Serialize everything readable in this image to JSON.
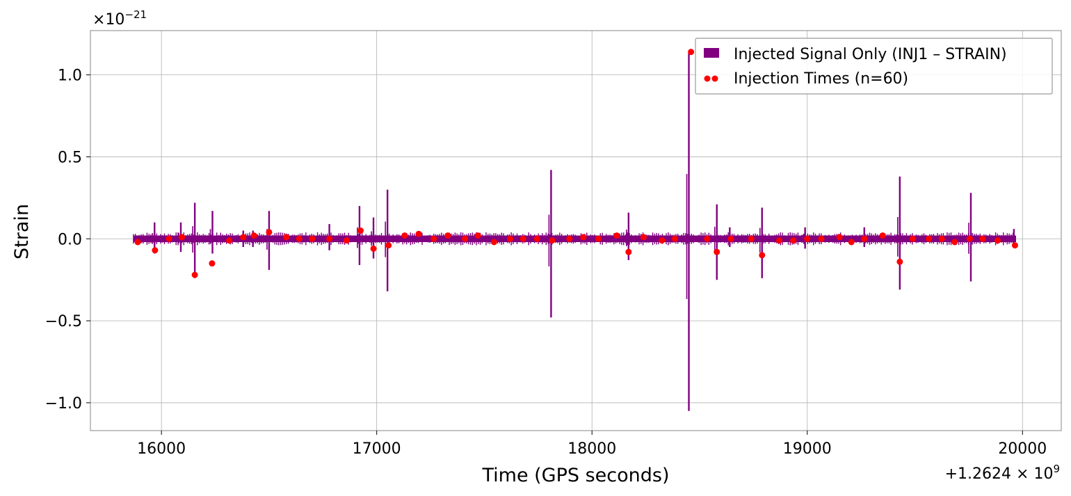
{
  "chart_data": {
    "type": "line",
    "xlabel": "Time (GPS seconds)",
    "ylabel": "Strain",
    "x_offset_label": "+1.2624 × 10",
    "x_offset_exp": "9",
    "y_scale_label": "×10",
    "y_scale_exp": "−21",
    "xlim": [
      15670,
      20180
    ],
    "ylim": [
      -1.17,
      1.27
    ],
    "xticks": [
      16000,
      17000,
      18000,
      19000,
      20000
    ],
    "xtick_labels": [
      "16000",
      "17000",
      "18000",
      "19000",
      "20000"
    ],
    "yticks": [
      1.0,
      0.5,
      0.0,
      -0.5,
      -1.0
    ],
    "ytick_labels": [
      "1.0",
      "0.5",
      "0.0",
      "−0.5",
      "−1.0"
    ],
    "grid": true,
    "legend_position": "top-right",
    "colors": {
      "signal": "#800080",
      "markers": "#ff0000"
    },
    "series": [
      {
        "name": "Injected Signal Only (INJ1 – STRAIN)",
        "kind": "line",
        "x_range": [
          15870,
          19970
        ],
        "baseline_noise": 0.02,
        "spikes": [
          {
            "x": 15968,
            "max": 0.1,
            "min": -0.09
          },
          {
            "x": 16090,
            "max": 0.1,
            "min": -0.08
          },
          {
            "x": 16155,
            "max": 0.22,
            "min": -0.24
          },
          {
            "x": 16237,
            "max": 0.17,
            "min": -0.09
          },
          {
            "x": 16380,
            "max": 0.05,
            "min": -0.05
          },
          {
            "x": 16425,
            "max": 0.05,
            "min": -0.05
          },
          {
            "x": 16500,
            "max": 0.17,
            "min": -0.19
          },
          {
            "x": 16780,
            "max": 0.09,
            "min": -0.07
          },
          {
            "x": 16920,
            "max": 0.2,
            "min": -0.16
          },
          {
            "x": 16985,
            "max": 0.13,
            "min": -0.12
          },
          {
            "x": 17050,
            "max": 0.3,
            "min": -0.32
          },
          {
            "x": 17810,
            "max": 0.42,
            "min": -0.48
          },
          {
            "x": 18170,
            "max": 0.16,
            "min": -0.13
          },
          {
            "x": 18450,
            "max": 1.13,
            "min": -1.05
          },
          {
            "x": 18580,
            "max": 0.21,
            "min": -0.25
          },
          {
            "x": 18640,
            "max": 0.07,
            "min": -0.05
          },
          {
            "x": 18790,
            "max": 0.19,
            "min": -0.24
          },
          {
            "x": 18990,
            "max": 0.07,
            "min": -0.06
          },
          {
            "x": 19265,
            "max": 0.07,
            "min": -0.05
          },
          {
            "x": 19430,
            "max": 0.38,
            "min": -0.31
          },
          {
            "x": 19760,
            "max": 0.28,
            "min": -0.26
          },
          {
            "x": 19960,
            "max": 0.06,
            "min": -0.05
          }
        ]
      },
      {
        "name": "Injection Times (n=60)",
        "kind": "scatter",
        "x": [
          15890,
          15970,
          16035,
          16095,
          16155,
          16235,
          16315,
          16380,
          16430,
          16500,
          16580,
          16640,
          16700,
          16780,
          16860,
          16925,
          16985,
          17055,
          17130,
          17195,
          17265,
          17330,
          17410,
          17470,
          17545,
          17620,
          17680,
          17745,
          17815,
          17895,
          17960,
          18030,
          18115,
          18170,
          18240,
          18325,
          18385,
          18460,
          18535,
          18580,
          18645,
          18740,
          18790,
          18870,
          18935,
          19000,
          19065,
          19150,
          19205,
          19265,
          19350,
          19430,
          19490,
          19565,
          19625,
          19685,
          19755,
          19815,
          19885,
          19965
        ],
        "y": [
          -0.02,
          -0.07,
          0.0,
          0.01,
          -0.22,
          -0.15,
          -0.01,
          0.01,
          0.02,
          0.04,
          0.01,
          0.0,
          0.0,
          0.0,
          -0.01,
          0.05,
          -0.06,
          -0.04,
          0.02,
          0.03,
          0.0,
          0.02,
          0.0,
          0.02,
          -0.02,
          0.0,
          0.0,
          0.0,
          -0.01,
          0.0,
          0.01,
          0.0,
          0.02,
          -0.08,
          0.01,
          -0.01,
          0.0,
          1.14,
          0.0,
          -0.08,
          0.0,
          0.0,
          -0.1,
          -0.01,
          -0.01,
          0.0,
          0.0,
          0.01,
          -0.02,
          0.0,
          0.02,
          -0.14,
          0.0,
          0.0,
          0.0,
          -0.02,
          0.0,
          0.0,
          -0.01,
          -0.04
        ]
      }
    ]
  }
}
